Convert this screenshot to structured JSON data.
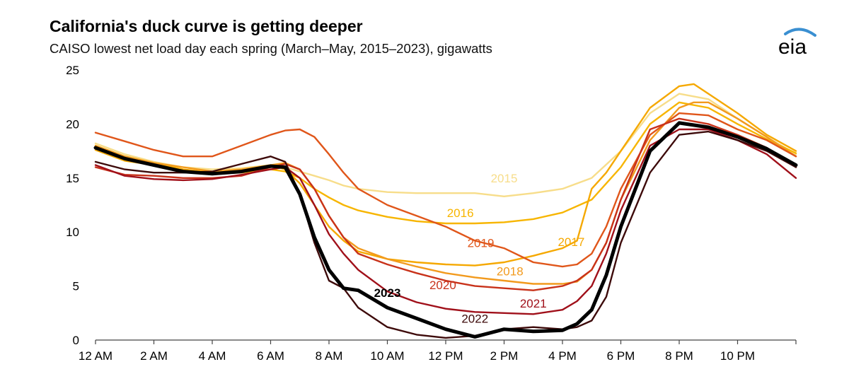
{
  "title": "California's duck curve is getting deeper",
  "subtitle": "CAISO lowest net load day each spring (March–May, 2015–2023), gigawatts",
  "logo_text": "eia",
  "chart_data": {
    "type": "line",
    "ylim": [
      0,
      25
    ],
    "yticks": [
      "0",
      "5",
      "10",
      "15",
      "20",
      "25"
    ],
    "xlim": [
      0,
      24
    ],
    "xticks": [
      {
        "h": 0,
        "label": "12 AM"
      },
      {
        "h": 2,
        "label": "2 AM"
      },
      {
        "h": 4,
        "label": "4 AM"
      },
      {
        "h": 6,
        "label": "6 AM"
      },
      {
        "h": 8,
        "label": "8 AM"
      },
      {
        "h": 10,
        "label": "10 AM"
      },
      {
        "h": 12,
        "label": "12 PM"
      },
      {
        "h": 14,
        "label": "2 PM"
      },
      {
        "h": 16,
        "label": "4 PM"
      },
      {
        "h": 18,
        "label": "6 PM"
      },
      {
        "h": 20,
        "label": "8 PM"
      },
      {
        "h": 22,
        "label": "10 PM"
      }
    ],
    "xlabel": "",
    "ylabel": "",
    "series": [
      {
        "name": "2015",
        "color": "#f7dd8a",
        "width": 2.4,
        "label_at": [
          14.0,
          14.6
        ],
        "x": [
          0,
          1,
          2,
          3,
          4,
          5,
          6,
          6.5,
          7,
          7.5,
          8,
          8.5,
          9,
          10,
          11,
          12,
          13,
          14,
          15,
          16,
          17,
          18,
          19,
          20,
          21,
          22,
          23,
          24
        ],
        "y": [
          18.2,
          17.2,
          16.5,
          16.0,
          15.8,
          15.9,
          16.2,
          16.0,
          15.6,
          15.2,
          14.8,
          14.3,
          14.0,
          13.7,
          13.6,
          13.6,
          13.6,
          13.3,
          13.6,
          14.0,
          15.0,
          17.5,
          21.0,
          22.8,
          22.3,
          20.5,
          18.8,
          17.2
        ]
      },
      {
        "name": "2016",
        "color": "#f7b500",
        "width": 2.4,
        "label_at": [
          12.5,
          11.4
        ],
        "x": [
          0,
          1,
          2,
          3,
          4,
          5,
          6,
          6.5,
          7,
          7.5,
          8,
          8.5,
          9,
          10,
          11,
          12,
          13,
          14,
          15,
          16,
          17,
          18,
          19,
          20,
          21,
          22,
          23,
          24
        ],
        "y": [
          18.0,
          17.0,
          16.4,
          15.8,
          15.4,
          15.5,
          15.8,
          15.6,
          15.0,
          14.0,
          13.2,
          12.5,
          12.0,
          11.4,
          11.0,
          10.8,
          10.8,
          10.9,
          11.2,
          11.8,
          13.0,
          16.0,
          20.0,
          22.0,
          21.5,
          20.0,
          18.6,
          17.3
        ]
      },
      {
        "name": "2017",
        "color": "#f5a800",
        "width": 2.4,
        "label_at": [
          16.3,
          8.7
        ],
        "x": [
          0,
          1,
          2,
          3,
          4,
          5,
          6,
          6.5,
          7,
          7.5,
          8,
          8.5,
          9,
          10,
          11,
          12,
          13,
          14,
          15,
          16,
          16.5,
          17,
          17.5,
          18,
          19,
          20,
          20.5,
          21,
          22,
          23,
          24
        ],
        "y": [
          17.6,
          16.6,
          16.2,
          15.8,
          15.5,
          15.7,
          16.2,
          15.8,
          14.5,
          12.5,
          10.5,
          9.2,
          8.2,
          7.5,
          7.2,
          7.0,
          6.9,
          7.2,
          7.8,
          8.5,
          9.2,
          14.0,
          15.5,
          17.5,
          21.5,
          23.5,
          23.7,
          22.8,
          21.0,
          19.0,
          17.5
        ]
      },
      {
        "name": "2018",
        "color": "#f29a1d",
        "width": 2.4,
        "label_at": [
          14.2,
          6.0
        ],
        "x": [
          0,
          1,
          2,
          3,
          4,
          5,
          6,
          6.5,
          7,
          7.5,
          8,
          8.5,
          9,
          10,
          11,
          12,
          13,
          14,
          15,
          16,
          16.5,
          17,
          17.5,
          18,
          19,
          20,
          20.5,
          21,
          22,
          23,
          24
        ],
        "y": [
          18.0,
          17.0,
          16.4,
          16.0,
          15.6,
          15.8,
          16.2,
          16.4,
          15.8,
          14.0,
          11.5,
          9.5,
          8.5,
          7.5,
          6.8,
          6.2,
          5.8,
          5.5,
          5.2,
          5.2,
          5.4,
          6.5,
          9.0,
          13.0,
          18.5,
          21.5,
          22.0,
          22.0,
          20.5,
          18.8,
          17.0
        ]
      },
      {
        "name": "2019",
        "color": "#e0561a",
        "width": 2.4,
        "label_at": [
          13.2,
          8.6
        ],
        "x": [
          0,
          1,
          2,
          3,
          4,
          5,
          6,
          6.5,
          7,
          7.5,
          8,
          8.5,
          9,
          10,
          11,
          12,
          13,
          14,
          15,
          16,
          16.5,
          17,
          17.5,
          18,
          19,
          20,
          21,
          22,
          23,
          24
        ],
        "y": [
          19.2,
          18.4,
          17.6,
          17.0,
          17.0,
          18.0,
          19.0,
          19.4,
          19.5,
          18.8,
          17.2,
          15.5,
          14.0,
          12.5,
          11.5,
          10.5,
          9.2,
          8.5,
          7.2,
          6.8,
          7.0,
          8.0,
          10.5,
          14.0,
          19.0,
          21.0,
          20.8,
          19.5,
          18.5,
          17.0
        ]
      },
      {
        "name": "2020",
        "color": "#c8321a",
        "width": 2.4,
        "label_at": [
          11.9,
          4.7
        ],
        "x": [
          0,
          1,
          2,
          3,
          4,
          5,
          6,
          6.5,
          7,
          7.5,
          8,
          8.5,
          9,
          10,
          11,
          12,
          13,
          14,
          15,
          16,
          16.5,
          17,
          17.5,
          18,
          19,
          20,
          21,
          22,
          23,
          24
        ],
        "y": [
          16.0,
          15.3,
          15.2,
          15.0,
          15.0,
          15.2,
          16.0,
          16.3,
          15.8,
          14.0,
          11.5,
          9.5,
          8.0,
          7.0,
          6.2,
          5.5,
          5.0,
          4.8,
          4.6,
          5.0,
          5.5,
          6.5,
          9.0,
          13.0,
          19.5,
          20.5,
          20.0,
          19.0,
          17.8,
          16.0
        ]
      },
      {
        "name": "2021",
        "color": "#a0101a",
        "width": 2.4,
        "label_at": [
          15.0,
          3.0
        ],
        "x": [
          0,
          1,
          2,
          3,
          4,
          5,
          6,
          6.5,
          7,
          7.5,
          8,
          8.5,
          9,
          10,
          11,
          12,
          13,
          14,
          15,
          16,
          16.5,
          17,
          17.5,
          18,
          19,
          20,
          21,
          22,
          23,
          24
        ],
        "y": [
          16.2,
          15.2,
          14.9,
          14.8,
          14.9,
          15.3,
          15.8,
          16.0,
          15.0,
          12.5,
          9.8,
          8.0,
          6.5,
          4.5,
          3.5,
          2.9,
          2.6,
          2.5,
          2.4,
          2.8,
          3.6,
          5.0,
          8.0,
          12.0,
          18.0,
          19.5,
          19.5,
          18.5,
          17.2,
          15.0
        ]
      },
      {
        "name": "2022",
        "color": "#3d0a0a",
        "width": 2.4,
        "label_at": [
          13.0,
          1.6
        ],
        "x": [
          0,
          1,
          2,
          3,
          4,
          5,
          6,
          6.5,
          7,
          7.5,
          8,
          8.5,
          9,
          10,
          11,
          12,
          13,
          14,
          15,
          16,
          16.5,
          17,
          17.5,
          18,
          19,
          20,
          21,
          22,
          23,
          24
        ],
        "y": [
          16.5,
          15.8,
          15.5,
          15.5,
          15.6,
          16.3,
          17.0,
          16.5,
          13.5,
          9.0,
          5.5,
          4.8,
          3.0,
          1.2,
          0.5,
          0.2,
          0.4,
          1.0,
          1.2,
          1.0,
          1.2,
          1.8,
          4.0,
          9.0,
          15.5,
          19.0,
          19.3,
          18.5,
          17.5,
          16.0
        ]
      },
      {
        "name": "2023",
        "color": "#000000",
        "width": 5.0,
        "label_at": [
          10.0,
          4.0
        ],
        "bold": true,
        "x": [
          0,
          1,
          2,
          3,
          4,
          5,
          6,
          6.5,
          7,
          7.5,
          8,
          8.5,
          9,
          10,
          11,
          12,
          13,
          14,
          15,
          16,
          16.5,
          17,
          17.5,
          18,
          19,
          20,
          21,
          22,
          23,
          24
        ],
        "y": [
          17.8,
          16.8,
          16.2,
          15.6,
          15.4,
          15.6,
          16.1,
          16.0,
          13.5,
          9.5,
          6.5,
          4.8,
          4.6,
          3.0,
          2.0,
          1.0,
          0.3,
          1.0,
          0.8,
          0.9,
          1.5,
          2.8,
          6.0,
          10.5,
          17.5,
          20.1,
          19.7,
          18.8,
          17.7,
          16.2
        ]
      }
    ]
  }
}
